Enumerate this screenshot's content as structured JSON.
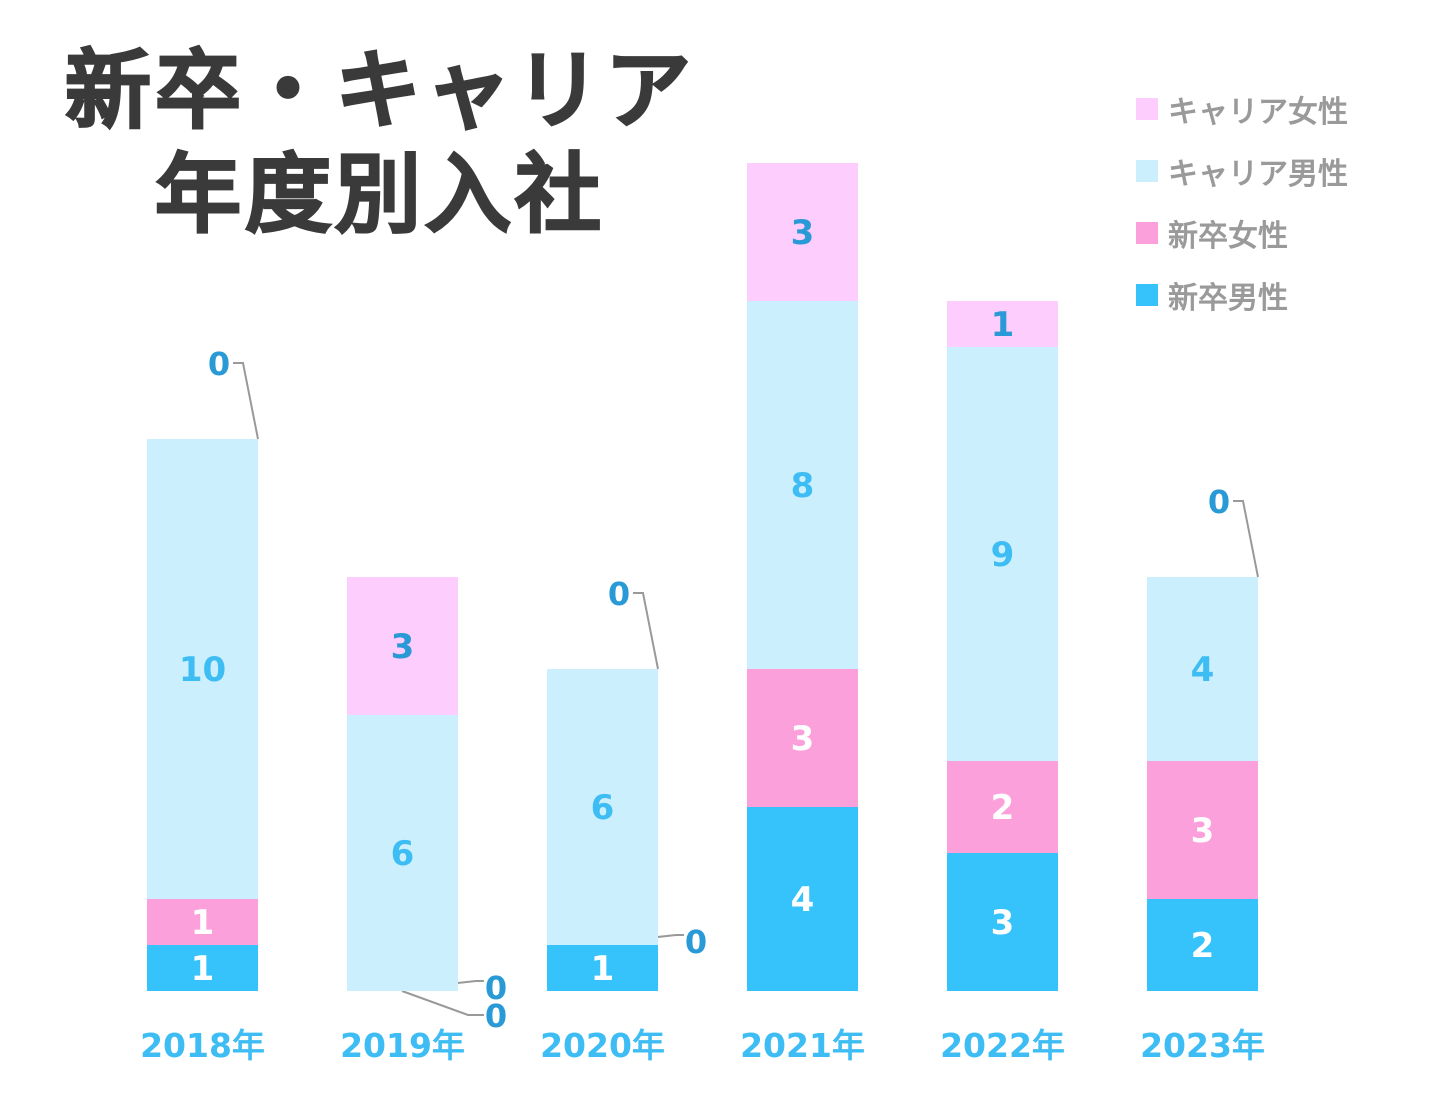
{
  "title_line1": "新卒・キャリア",
  "title_line2": "年度別入社",
  "chart_data": {
    "type": "bar",
    "stacked": true,
    "categories": [
      "2018年",
      "2019年",
      "2020年",
      "2021年",
      "2022年",
      "2023年"
    ],
    "series": [
      {
        "name": "新卒男性",
        "values": [
          1,
          0,
          1,
          4,
          3,
          2
        ],
        "color": "#36c2fa",
        "label_color": "#ffffff"
      },
      {
        "name": "新卒女性",
        "values": [
          1,
          0,
          0,
          3,
          2,
          3
        ],
        "color": "#fca0dc",
        "label_color": "#ffffff"
      },
      {
        "name": "キャリア男性",
        "values": [
          10,
          6,
          6,
          8,
          9,
          4
        ],
        "color": "#cbeffc",
        "label_color": "#3dbdf3"
      },
      {
        "name": "キャリア女性",
        "values": [
          0,
          3,
          0,
          3,
          1,
          0
        ],
        "color": "#fdcdfd",
        "label_color": "#2a9ad6"
      }
    ],
    "legend_order": [
      "キャリア女性",
      "キャリア男性",
      "新卒女性",
      "新卒男性"
    ],
    "legend_position": "top-right",
    "grid": false
  }
}
